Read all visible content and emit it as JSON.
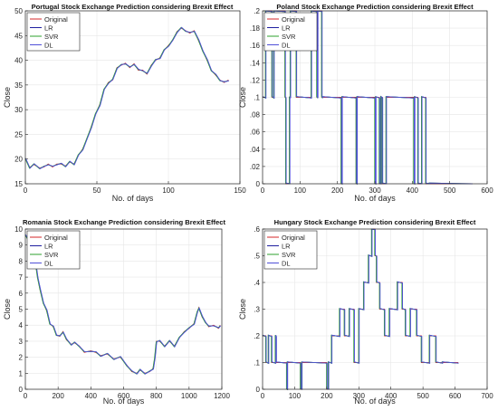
{
  "legend_labels": [
    "Original",
    "LR",
    "SVR",
    "DL"
  ],
  "chart_data": [
    {
      "type": "line",
      "title": "Portugal Stock Exchange Prediction considering Brexit Effect",
      "xlabel": "No. of days",
      "ylabel": "Close",
      "xlim": [
        0,
        150
      ],
      "ylim": [
        15,
        50
      ],
      "xticks": [
        0,
        50,
        100,
        150
      ],
      "yticks": [
        15,
        20,
        25,
        30,
        35,
        40,
        45,
        50
      ],
      "grid": true,
      "legend_position": "top-left",
      "colors": {
        "Original": "#d62728",
        "LR": "#1f1f9f",
        "SVR": "#2ca02c",
        "DL": "#5050d8"
      },
      "series": [
        {
          "name": "Original",
          "x": [
            0,
            3,
            6,
            10,
            13,
            16,
            19,
            22,
            25,
            28,
            31,
            34,
            37,
            40,
            43,
            46,
            49,
            52,
            55,
            58,
            61,
            64,
            67,
            70,
            73,
            76,
            79,
            82,
            85,
            88,
            91,
            94,
            97,
            100,
            103,
            106,
            109,
            112,
            115,
            118,
            121,
            124,
            127,
            130,
            133,
            136,
            139,
            142
          ],
          "y": [
            20,
            18.3,
            18.9,
            18.2,
            18.4,
            19,
            18.4,
            19,
            19,
            18.6,
            19.4,
            19,
            20.7,
            22,
            24,
            26.5,
            29,
            31,
            34,
            35.5,
            36,
            38.5,
            39,
            39.4,
            38.5,
            39.3,
            38,
            38,
            37.2,
            39,
            40,
            40.5,
            42,
            43,
            44,
            45.8,
            46.5,
            46,
            45.5,
            46,
            44,
            42,
            40,
            38,
            37,
            36,
            35.5,
            36
          ]
        }
      ]
    },
    {
      "type": "line",
      "title": "Poland Stock Exchange Prediction considering Brexit Effect",
      "xlabel": "No. of days",
      "ylabel": "Close",
      "xlim": [
        0,
        600
      ],
      "ylim": [
        0,
        0.2
      ],
      "xticks": [
        0,
        100,
        200,
        300,
        400,
        500,
        600
      ],
      "yticks": [
        0,
        0.02,
        0.04,
        0.06,
        0.08,
        0.1,
        0.12,
        0.14,
        0.16,
        0.18,
        0.2
      ],
      "grid": true,
      "legend_position": "top-left",
      "colors": {
        "Original": "#d62728",
        "LR": "#1f1f9f",
        "SVR": "#2ca02c",
        "DL": "#5050d8"
      },
      "series": [
        {
          "name": "Original",
          "x": [
            0,
            8,
            8,
            25,
            25,
            30,
            30,
            60,
            60,
            62,
            62,
            72,
            72,
            74,
            74,
            90,
            90,
            130,
            130,
            145,
            145,
            147,
            147,
            158,
            158,
            160,
            160,
            210,
            210,
            212,
            212,
            250,
            250,
            252,
            252,
            300,
            300,
            302,
            302,
            312,
            312,
            316,
            316,
            320,
            320,
            330,
            330,
            404,
            404,
            406,
            406,
            415,
            415,
            425,
            425,
            436,
            436,
            445,
            445,
            560
          ],
          "y": [
            0.1,
            0.1,
            0.2,
            0.2,
            0.1,
            0.1,
            0.2,
            0.2,
            0.1,
            0.1,
            0,
            0,
            0.1,
            0.1,
            0.2,
            0.2,
            0.1,
            0.1,
            0.2,
            0.2,
            0.1,
            0.1,
            0.2,
            0.2,
            0.1,
            0.1,
            0.1,
            0.1,
            0,
            0,
            0.1,
            0.1,
            0,
            0,
            0.1,
            0.1,
            0,
            0,
            0.1,
            0.1,
            0,
            0,
            0.1,
            0.1,
            0,
            0,
            0.1,
            0.1,
            0,
            0,
            0.1,
            0.1,
            0,
            0,
            0.1,
            0.1,
            0,
            0,
            0,
            0
          ]
        }
      ]
    },
    {
      "type": "line",
      "title": "Romania Stock Exchange Prediction considering Brexit Effect",
      "xlabel": "No. of days",
      "ylabel": "Close",
      "xlim": [
        0,
        1200
      ],
      "ylim": [
        0,
        10
      ],
      "xticks": [
        0,
        200,
        400,
        600,
        800,
        1000,
        1200
      ],
      "yticks": [
        0,
        1,
        2,
        3,
        4,
        5,
        6,
        7,
        8,
        9,
        10
      ],
      "grid": true,
      "legend_position": "top-left",
      "colors": {
        "Original": "#d62728",
        "LR": "#1f1f9f",
        "SVR": "#2ca02c",
        "DL": "#5050d8"
      },
      "series": [
        {
          "name": "Original",
          "x": [
            0,
            15,
            30,
            45,
            60,
            75,
            90,
            110,
            130,
            150,
            170,
            190,
            210,
            230,
            250,
            280,
            300,
            330,
            360,
            400,
            430,
            460,
            500,
            540,
            580,
            620,
            650,
            680,
            700,
            730,
            760,
            780,
            790,
            800,
            820,
            850,
            880,
            910,
            940,
            970,
            1000,
            1030,
            1050,
            1060,
            1080,
            1100,
            1120,
            1150,
            1180,
            1190
          ],
          "y": [
            9.6,
            9.4,
            9.1,
            8.7,
            8.0,
            7.0,
            6.2,
            5.4,
            4.9,
            4.1,
            3.9,
            3.4,
            3.3,
            3.6,
            3.1,
            2.8,
            2.9,
            2.7,
            2.3,
            2.4,
            2.3,
            2.1,
            2.2,
            1.9,
            2.0,
            1.5,
            1.1,
            1.0,
            1.2,
            1.0,
            1.1,
            1.3,
            1.9,
            3.0,
            3.0,
            2.7,
            3.0,
            2.7,
            3.2,
            3.6,
            3.8,
            4.1,
            4.8,
            5.1,
            4.5,
            4.2,
            3.9,
            4.0,
            3.8,
            4.0
          ]
        }
      ]
    },
    {
      "type": "line",
      "title": "Hungary Stock Exchange Prediction considering Brexit Effect",
      "xlabel": "No. of days",
      "ylabel": "Close",
      "xlim": [
        0,
        700
      ],
      "ylim": [
        0,
        0.6
      ],
      "xticks": [
        0,
        100,
        200,
        300,
        400,
        500,
        600,
        700
      ],
      "yticks": [
        0,
        0.1,
        0.2,
        0.3,
        0.4,
        0.5,
        0.6
      ],
      "grid": true,
      "legend_position": "top-left",
      "colors": {
        "Original": "#d62728",
        "LR": "#1f1f9f",
        "SVR": "#2ca02c",
        "DL": "#5050d8"
      },
      "series": [
        {
          "name": "Original",
          "x": [
            0,
            10,
            10,
            18,
            18,
            28,
            28,
            40,
            40,
            42,
            42,
            75,
            75,
            77,
            77,
            118,
            118,
            122,
            122,
            200,
            200,
            205,
            205,
            215,
            215,
            240,
            240,
            255,
            255,
            270,
            270,
            285,
            285,
            300,
            300,
            315,
            315,
            330,
            330,
            340,
            340,
            350,
            350,
            355,
            355,
            365,
            365,
            380,
            380,
            395,
            395,
            420,
            420,
            435,
            435,
            445,
            445,
            460,
            460,
            480,
            480,
            495,
            495,
            520,
            520,
            540,
            540,
            560,
            560,
            610
          ],
          "y": [
            0.2,
            0.2,
            0.1,
            0.1,
            0.2,
            0.2,
            0.1,
            0.1,
            0.2,
            0.2,
            0.1,
            0.1,
            0,
            0,
            0.1,
            0.1,
            0,
            0,
            0.1,
            0.1,
            0,
            0,
            0.1,
            0.1,
            0.2,
            0.2,
            0.3,
            0.3,
            0.2,
            0.2,
            0.3,
            0.3,
            0.1,
            0.1,
            0.3,
            0.3,
            0.4,
            0.4,
            0.5,
            0.5,
            0.6,
            0.6,
            0.5,
            0.5,
            0.4,
            0.4,
            0.3,
            0.3,
            0.2,
            0.2,
            0.3,
            0.3,
            0.4,
            0.4,
            0.3,
            0.3,
            0.2,
            0.2,
            0.3,
            0.3,
            0.2,
            0.2,
            0.1,
            0.1,
            0.2,
            0.2,
            0.1,
            0.1,
            0.1,
            0.1
          ]
        }
      ]
    }
  ]
}
